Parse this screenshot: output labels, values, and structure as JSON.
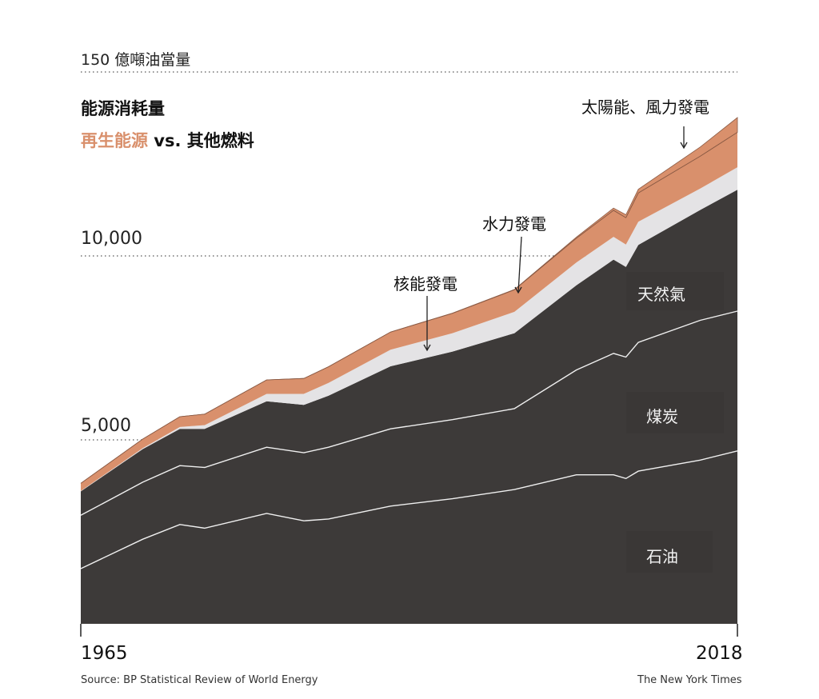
{
  "header": {
    "unit_label": "150 億噸油當量",
    "title": "能源消耗量",
    "subtitle_highlight": "再生能源",
    "subtitle_rest": " vs. 其他燃料"
  },
  "annotations": {
    "solar_wind": "太陽能、風力發電",
    "hydro": "水力發電",
    "nuclear": "核能發電",
    "gas": "天然氣",
    "coal": "煤炭",
    "oil": "石油"
  },
  "footer": {
    "source": "Source: BP Statistical Review of World Energy",
    "credit": "The New York Times"
  },
  "colors": {
    "fossil": "#3d3a39",
    "nuclear": "#e4e3e5",
    "renewable": "#d9906c",
    "divider": "#f0f0f0",
    "dotted_rule": "#555555"
  },
  "chart_data": {
    "type": "area",
    "stacked": true,
    "x": [
      1965,
      1970,
      1973,
      1975,
      1980,
      1983,
      1985,
      1990,
      1995,
      2000,
      2005,
      2008,
      2009,
      2010,
      2015,
      2018
    ],
    "ylim": [
      0,
      15000
    ],
    "y_ticks": [
      "5,000",
      "10,000"
    ],
    "x_ticks": [
      "1965",
      "2018"
    ],
    "series": [
      {
        "name": "石油",
        "values": [
          1500,
          2300,
          2700,
          2600,
          3000,
          2800,
          2850,
          3200,
          3400,
          3650,
          4050,
          4050,
          3950,
          4150,
          4450,
          4700
        ]
      },
      {
        "name": "煤炭",
        "values": [
          1450,
          1550,
          1600,
          1650,
          1800,
          1850,
          1950,
          2100,
          2150,
          2200,
          2850,
          3300,
          3300,
          3500,
          3800,
          3800
        ]
      },
      {
        "name": "天然氣",
        "values": [
          650,
          900,
          1000,
          1050,
          1250,
          1300,
          1400,
          1700,
          1850,
          2050,
          2300,
          2550,
          2450,
          2650,
          3000,
          3300
        ]
      },
      {
        "name": "核能發電",
        "values": [
          10,
          25,
          50,
          100,
          200,
          300,
          350,
          450,
          500,
          580,
          620,
          620,
          610,
          630,
          580,
          610
        ]
      },
      {
        "name": "水力發電",
        "values": [
          210,
          250,
          280,
          300,
          380,
          420,
          440,
          480,
          540,
          600,
          660,
          720,
          730,
          780,
          880,
          950
        ]
      },
      {
        "name": "太陽能、風力發電",
        "values": [
          0,
          0,
          0,
          0,
          0,
          0,
          0,
          2,
          5,
          10,
          30,
          60,
          80,
          100,
          250,
          400
        ]
      }
    ]
  }
}
